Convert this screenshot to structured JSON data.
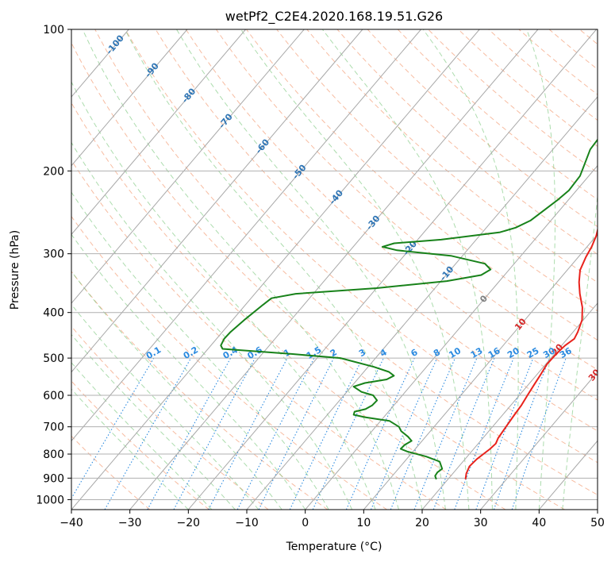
{
  "chart_data": {
    "type": "line",
    "title": "wetPf2_C2E4.2020.168.19.51.G26",
    "xlabel": "Temperature (°C)",
    "ylabel": "Pressure (hPa)",
    "xlim": [
      -40,
      50
    ],
    "ylim": [
      1050,
      100
    ],
    "y_scale": "log",
    "x_ticks": [
      "−40",
      "−30",
      "−20",
      "−10",
      "0",
      "10",
      "20",
      "30",
      "40",
      "50"
    ],
    "y_ticks": [
      "100",
      "200",
      "300",
      "400",
      "500",
      "600",
      "700",
      "800",
      "900",
      "1000"
    ],
    "grid": true,
    "series": [
      {
        "color": "#e8231c",
        "points": [
          [
            23,
            905
          ],
          [
            22.3,
            880
          ],
          [
            21.8,
            850
          ],
          [
            22,
            820
          ],
          [
            22.8,
            780
          ],
          [
            23,
            760
          ],
          [
            22.6,
            740
          ],
          [
            22.3,
            700
          ],
          [
            22,
            660
          ],
          [
            21.8,
            630
          ],
          [
            21.4,
            600
          ],
          [
            21,
            570
          ],
          [
            20.6,
            540
          ],
          [
            20.2,
            515
          ],
          [
            20.3,
            490
          ],
          [
            20.6,
            470
          ],
          [
            21.2,
            455
          ],
          [
            20.8,
            440
          ],
          [
            19.8,
            415
          ],
          [
            18,
            390
          ],
          [
            15.6,
            365
          ],
          [
            13.8,
            345
          ],
          [
            12.2,
            325
          ],
          [
            11.3,
            305
          ],
          [
            10.8,
            290
          ],
          [
            10,
            275
          ],
          [
            8.8,
            260
          ],
          [
            7.4,
            245
          ],
          [
            5.8,
            230
          ],
          [
            4.3,
            215
          ],
          [
            3,
            205
          ],
          [
            2,
            195
          ],
          [
            1.5,
            185
          ],
          [
            1.3,
            175
          ],
          [
            1.4,
            160
          ],
          [
            1.8,
            150
          ],
          [
            1.7,
            140
          ],
          [
            1.2,
            133
          ],
          [
            0.8,
            128
          ],
          [
            0.7,
            122
          ],
          [
            1.3,
            117
          ],
          [
            2.8,
            113
          ],
          [
            4.8,
            110
          ],
          [
            6.8,
            106
          ],
          [
            8.8,
            102
          ],
          [
            9.8,
            100
          ]
        ]
      },
      {
        "color": "#18821a",
        "points": [
          [
            18,
            905
          ],
          [
            17.3,
            890
          ],
          [
            17.2,
            875
          ],
          [
            17.5,
            860
          ],
          [
            16,
            830
          ],
          [
            13,
            810
          ],
          [
            9,
            790
          ],
          [
            7.5,
            780
          ],
          [
            7.6,
            765
          ],
          [
            8.2,
            750
          ],
          [
            7,
            735
          ],
          [
            5,
            715
          ],
          [
            4,
            700
          ],
          [
            1.5,
            680
          ],
          [
            -3.2,
            668
          ],
          [
            -5.5,
            660
          ],
          [
            -5.8,
            650
          ],
          [
            -4.3,
            642
          ],
          [
            -3.7,
            630
          ],
          [
            -3.6,
            615
          ],
          [
            -5,
            600
          ],
          [
            -7.5,
            590
          ],
          [
            -9.6,
            575
          ],
          [
            -8.2,
            565
          ],
          [
            -5,
            555
          ],
          [
            -4.3,
            545
          ],
          [
            -5.7,
            535
          ],
          [
            -9,
            522
          ],
          [
            -16,
            500
          ],
          [
            -25,
            490
          ],
          [
            -37.5,
            478
          ],
          [
            -38.3,
            470
          ],
          [
            -38.7,
            455
          ],
          [
            -38.6,
            440
          ],
          [
            -38,
            415
          ],
          [
            -37,
            385
          ],
          [
            -36.5,
            373
          ],
          [
            -33,
            365
          ],
          [
            -20,
            355
          ],
          [
            -9,
            343
          ],
          [
            -4,
            333
          ],
          [
            -3.2,
            324
          ],
          [
            -5,
            315
          ],
          [
            -12,
            303
          ],
          [
            -22,
            295
          ],
          [
            -25,
            290
          ],
          [
            -23.5,
            285
          ],
          [
            -16,
            280
          ],
          [
            -7,
            270
          ],
          [
            -5,
            264
          ],
          [
            -3.5,
            255
          ],
          [
            -2.5,
            240
          ],
          [
            -1.8,
            230
          ],
          [
            -1.3,
            220
          ],
          [
            -1.5,
            205
          ],
          [
            -2.3,
            195
          ],
          [
            -3.6,
            180
          ],
          [
            -3.8,
            170
          ],
          [
            -3.6,
            160
          ],
          [
            -2.3,
            150
          ],
          [
            -1.6,
            140
          ],
          [
            -0.5,
            130
          ],
          [
            0.8,
            125
          ],
          [
            1.3,
            120
          ],
          [
            1.2,
            115
          ],
          [
            1.5,
            108
          ],
          [
            2.5,
            100
          ]
        ]
      }
    ],
    "background_lines": {
      "dry_adiabats": "dashed, salmon",
      "moist_adiabats": "dashed, green",
      "mixing_ratio": "dotted, blue",
      "isotherms": "solid, gray, skewed"
    },
    "annotations": {
      "isotherm_labels": [
        "-100",
        "-90",
        "-80",
        "-70",
        "-60",
        "-50",
        "-40",
        "-30",
        "-20",
        "-10",
        "0",
        "10",
        "20",
        "30",
        "40"
      ],
      "mixing_ratio_labels": [
        "0.1",
        "0.2",
        "0.4",
        "0.6",
        "1",
        "1.5",
        "2",
        "3",
        "4",
        "6",
        "8",
        "10",
        "13",
        "16",
        "20",
        "25",
        "30",
        "36"
      ]
    }
  }
}
